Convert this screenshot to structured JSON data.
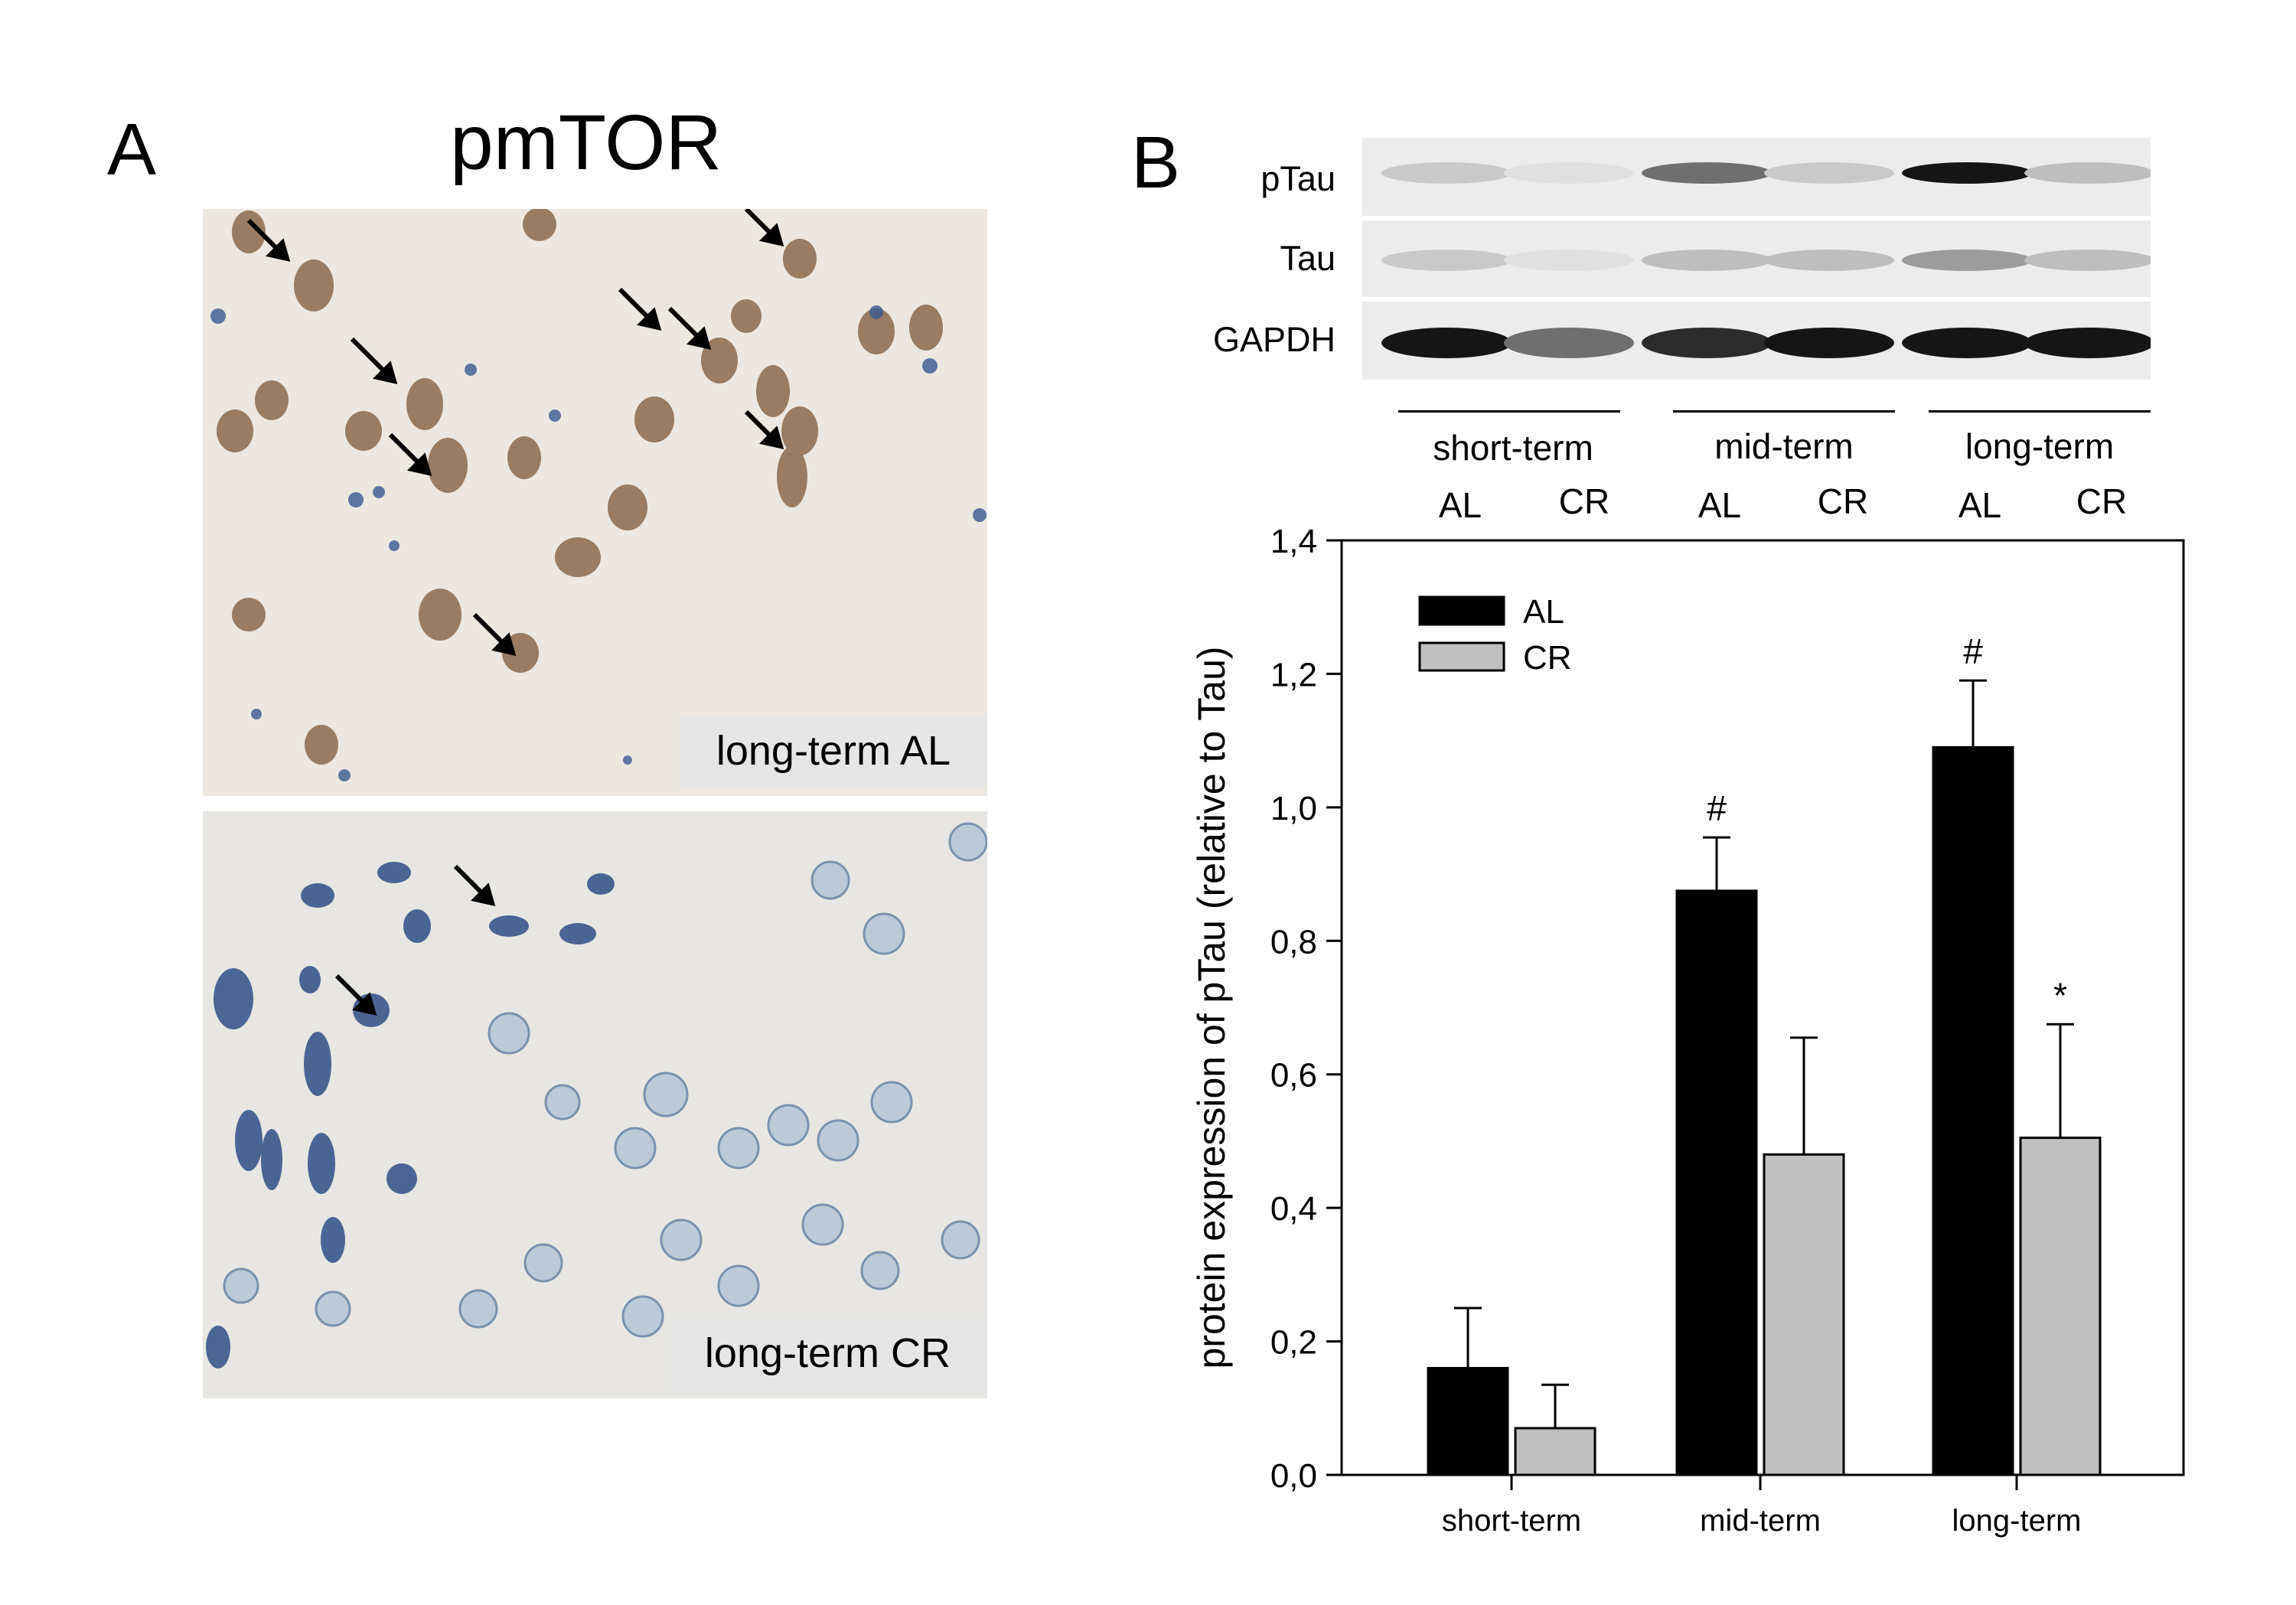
{
  "panel_a": {
    "letter": "A",
    "title": "pmTOR",
    "images": [
      {
        "label": "long-term AL",
        "tint": "#8a6a4e"
      },
      {
        "label": "long-term CR",
        "tint": "#3a5a90"
      }
    ]
  },
  "panel_b": {
    "letter": "B",
    "blot": {
      "proteins": [
        "pTau",
        "Tau",
        "GAPDH"
      ],
      "groups": [
        "short-term",
        "mid-term",
        "long-term"
      ],
      "lanes": [
        "AL",
        "CR",
        "AL",
        "CR",
        "AL",
        "CR"
      ],
      "band_intensity": {
        "pTau": [
          0.15,
          0.05,
          0.55,
          0.15,
          0.95,
          0.2
        ],
        "Tau": [
          0.15,
          0.05,
          0.2,
          0.2,
          0.35,
          0.2
        ],
        "GAPDH": [
          0.95,
          0.55,
          0.85,
          0.95,
          0.95,
          0.95
        ]
      }
    }
  },
  "chart_data": {
    "type": "bar",
    "title": "",
    "xlabel": "",
    "ylabel": "protein expression of pTau (relative to Tau)",
    "categories": [
      "short-term",
      "mid-term",
      "long-term"
    ],
    "ylim": [
      0.0,
      1.4
    ],
    "yticks": [
      "0,0",
      "0,2",
      "0,4",
      "0,6",
      "0,8",
      "1,0",
      "1,2",
      "1,4"
    ],
    "legend_position": "top-left",
    "series": [
      {
        "name": "AL",
        "color": "#000000",
        "values": [
          0.16,
          0.875,
          1.09
        ],
        "errors": [
          0.09,
          0.08,
          0.1
        ],
        "annotations": [
          "",
          "#",
          "#"
        ]
      },
      {
        "name": "CR",
        "color": "#c0c0c0",
        "values": [
          0.07,
          0.48,
          0.505
        ],
        "errors": [
          0.065,
          0.175,
          0.17
        ],
        "annotations": [
          "",
          "",
          "*"
        ]
      }
    ]
  }
}
